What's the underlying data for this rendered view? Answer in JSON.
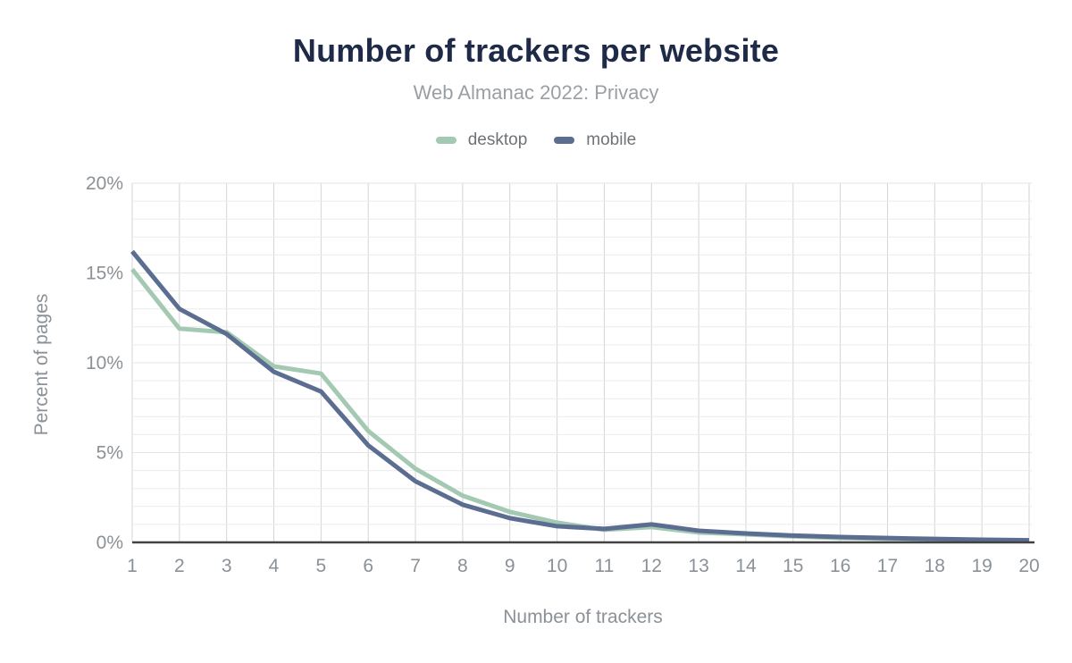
{
  "header": {
    "title": "Number of trackers per website",
    "subtitle": "Web Almanac 2022: Privacy"
  },
  "legend": {
    "items": [
      {
        "label": "desktop",
        "color": "#a3c9b3"
      },
      {
        "label": "mobile",
        "color": "#5b6d90"
      }
    ]
  },
  "axes": {
    "xlabel": "Number of trackers",
    "ylabel": "Percent of pages",
    "y_tick_labels": [
      "0%",
      "5%",
      "10%",
      "15%",
      "20%"
    ],
    "x_tick_labels": [
      "1",
      "2",
      "3",
      "4",
      "5",
      "6",
      "7",
      "8",
      "9",
      "10",
      "11",
      "12",
      "13",
      "14",
      "15",
      "16",
      "17",
      "18",
      "19",
      "20"
    ]
  },
  "chart_data": {
    "type": "line",
    "title": "Number of trackers per website",
    "subtitle": "Web Almanac 2022: Privacy",
    "xlabel": "Number of trackers",
    "ylabel": "Percent of pages",
    "x": [
      1,
      2,
      3,
      4,
      5,
      6,
      7,
      8,
      9,
      10,
      11,
      12,
      13,
      14,
      15,
      16,
      17,
      18,
      19,
      20
    ],
    "series": [
      {
        "name": "desktop",
        "color": "#a3c9b3",
        "values": [
          15.2,
          11.9,
          11.7,
          9.8,
          9.4,
          6.2,
          4.1,
          2.6,
          1.7,
          1.1,
          0.7,
          0.85,
          0.55,
          0.45,
          0.33,
          0.25,
          0.2,
          0.16,
          0.13,
          0.1
        ]
      },
      {
        "name": "mobile",
        "color": "#5b6d90",
        "values": [
          16.2,
          13.0,
          11.6,
          9.5,
          8.4,
          5.4,
          3.4,
          2.1,
          1.35,
          0.9,
          0.75,
          1.0,
          0.65,
          0.5,
          0.38,
          0.3,
          0.24,
          0.19,
          0.15,
          0.12
        ]
      }
    ],
    "ylim": [
      0,
      20
    ],
    "y_major_step": 5,
    "y_minor_step": 1,
    "grid": {
      "vertical": true,
      "horizontal": true
    },
    "legend_position": "top",
    "colors": {
      "axis_line": "#424242",
      "vertical_grid": "#d4d4d4",
      "horizontal_grid": "#ececec",
      "tick_text": "#8b9196"
    }
  }
}
